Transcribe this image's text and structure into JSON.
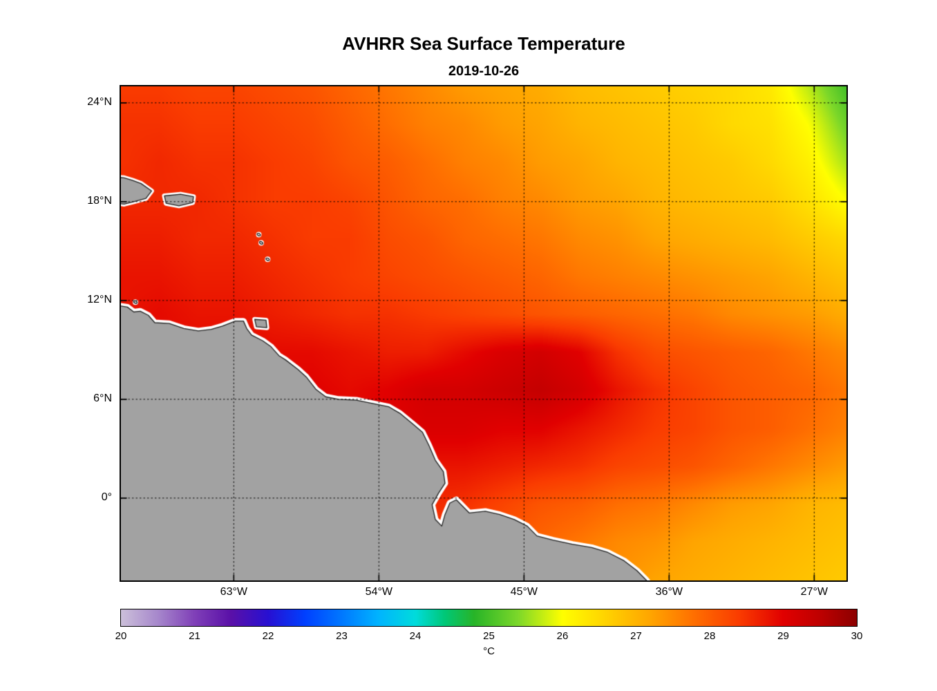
{
  "title": "AVHRR Sea Surface Temperature",
  "subtitle": "2019-10-26",
  "chart_data": {
    "type": "heatmap",
    "title": "AVHRR Sea Surface Temperature",
    "subtitle": "2019-10-26",
    "grid": "dotted",
    "units": "°C",
    "x_axis": {
      "range": [
        -70,
        -25
      ],
      "ticks": [
        {
          "value": -63,
          "label": "63°W"
        },
        {
          "value": -54,
          "label": "54°W"
        },
        {
          "value": -45,
          "label": "45°W"
        },
        {
          "value": -36,
          "label": "36°W"
        },
        {
          "value": -27,
          "label": "27°W"
        }
      ]
    },
    "y_axis": {
      "range": [
        -5,
        25
      ],
      "ticks": [
        {
          "value": 24,
          "label": "24°N"
        },
        {
          "value": 18,
          "label": "18°N"
        },
        {
          "value": 12,
          "label": "12°N"
        },
        {
          "value": 6,
          "label": "6°N"
        },
        {
          "value": 0,
          "label": "0°"
        }
      ]
    },
    "sst_grid": {
      "lon_start": -70,
      "lon_end": -25,
      "cols": 20,
      "lat_start": 25,
      "lat_end": -5,
      "rows": 14,
      "units": "°C",
      "values": [
        [
          28.4,
          28.4,
          28.3,
          28.3,
          28.2,
          28.1,
          27.9,
          27.7,
          27.5,
          27.3,
          27.2,
          27.1,
          26.9,
          26.8,
          26.7,
          26.6,
          26.5,
          26.3,
          25.7,
          25.0
        ],
        [
          28.5,
          28.5,
          28.4,
          28.4,
          28.3,
          28.2,
          28.0,
          27.8,
          27.6,
          27.5,
          27.3,
          27.2,
          27.0,
          26.9,
          26.8,
          26.7,
          26.5,
          26.4,
          26.0,
          25.3
        ],
        [
          28.5,
          28.6,
          28.5,
          28.5,
          28.4,
          28.3,
          28.1,
          28.0,
          27.8,
          27.6,
          27.5,
          27.3,
          27.2,
          27.0,
          26.9,
          26.8,
          26.7,
          26.5,
          26.2,
          25.6
        ],
        [
          28.6,
          28.6,
          28.6,
          28.5,
          28.4,
          28.4,
          28.3,
          28.1,
          27.9,
          27.8,
          27.6,
          27.5,
          27.3,
          27.2,
          27.0,
          26.9,
          26.8,
          26.7,
          26.4,
          26.0
        ],
        [
          28.7,
          28.7,
          28.6,
          28.6,
          28.5,
          28.4,
          28.4,
          28.2,
          28.1,
          27.9,
          27.8,
          27.7,
          27.5,
          27.4,
          27.2,
          27.1,
          27.0,
          26.9,
          26.7,
          26.5
        ],
        [
          28.8,
          28.8,
          28.7,
          28.7,
          28.6,
          28.5,
          28.4,
          28.3,
          28.2,
          28.1,
          28.0,
          27.9,
          27.7,
          27.6,
          27.5,
          27.4,
          27.3,
          27.2,
          27.0,
          26.8
        ],
        [
          28.8,
          28.9,
          28.8,
          28.8,
          28.7,
          28.6,
          28.5,
          28.5,
          28.4,
          28.3,
          28.2,
          28.1,
          28.0,
          27.9,
          27.8,
          27.7,
          27.5,
          27.4,
          27.3,
          27.1
        ],
        [
          28.9,
          28.9,
          28.9,
          29.0,
          28.9,
          28.9,
          28.8,
          28.7,
          28.7,
          28.9,
          29.1,
          29.2,
          29.0,
          28.5,
          28.2,
          28.1,
          28.0,
          27.9,
          27.7,
          27.5
        ],
        [
          28.9,
          29.0,
          29.0,
          29.0,
          29.0,
          29.0,
          28.9,
          29.0,
          29.2,
          29.2,
          29.3,
          29.4,
          29.2,
          28.8,
          28.5,
          28.3,
          28.1,
          28.0,
          27.9,
          27.7
        ],
        [
          29.0,
          29.0,
          29.0,
          29.0,
          29.0,
          29.0,
          29.0,
          29.0,
          29.1,
          29.1,
          29.0,
          29.0,
          28.8,
          28.6,
          28.4,
          28.3,
          28.1,
          28.0,
          27.8,
          27.6
        ],
        [
          29.0,
          29.0,
          29.0,
          29.0,
          29.0,
          29.0,
          28.9,
          28.9,
          28.8,
          28.8,
          28.7,
          28.6,
          28.5,
          28.3,
          28.2,
          28.1,
          27.9,
          27.7,
          27.5,
          27.3
        ],
        [
          29.0,
          29.0,
          29.0,
          29.0,
          29.0,
          28.9,
          28.9,
          28.8,
          28.6,
          28.5,
          28.3,
          28.1,
          28.0,
          27.8,
          27.7,
          27.5,
          27.3,
          27.2,
          27.0,
          26.9
        ],
        [
          29.0,
          29.0,
          29.0,
          29.0,
          29.0,
          28.9,
          28.8,
          28.7,
          28.5,
          28.3,
          28.1,
          27.9,
          27.7,
          27.5,
          27.4,
          27.2,
          27.1,
          27.0,
          26.9,
          26.8
        ],
        [
          29.0,
          29.0,
          29.0,
          29.0,
          28.9,
          28.9,
          28.8,
          28.6,
          28.4,
          28.2,
          28.0,
          27.8,
          27.6,
          27.4,
          27.2,
          27.1,
          27.0,
          26.9,
          26.8,
          26.7
        ]
      ]
    },
    "colormap": [
      {
        "t": 20.0,
        "c": "#CCC0DA"
      },
      {
        "t": 20.5,
        "c": "#A788CC"
      },
      {
        "t": 21.0,
        "c": "#8040B8"
      },
      {
        "t": 21.5,
        "c": "#5A10A8"
      },
      {
        "t": 22.0,
        "c": "#2810D2"
      },
      {
        "t": 22.5,
        "c": "#0040FF"
      },
      {
        "t": 23.0,
        "c": "#0078FF"
      },
      {
        "t": 23.5,
        "c": "#00B4FF"
      },
      {
        "t": 24.0,
        "c": "#00DCDC"
      },
      {
        "t": 24.4,
        "c": "#00C878"
      },
      {
        "t": 24.8,
        "c": "#28B428"
      },
      {
        "t": 25.4,
        "c": "#7DD82A"
      },
      {
        "t": 26.0,
        "c": "#FFFF00"
      },
      {
        "t": 26.6,
        "c": "#FFD200"
      },
      {
        "t": 27.2,
        "c": "#FFA500"
      },
      {
        "t": 27.8,
        "c": "#FF6E00"
      },
      {
        "t": 28.4,
        "c": "#FA3C00"
      },
      {
        "t": 29.0,
        "c": "#E10000"
      },
      {
        "t": 29.5,
        "c": "#BE0000"
      },
      {
        "t": 30.0,
        "c": "#8C0000"
      }
    ],
    "colorbar": {
      "min": 20,
      "max": 30,
      "ticks": [
        20,
        21,
        22,
        23,
        24,
        25,
        26,
        27,
        28,
        29,
        30
      ],
      "label": "°C"
    },
    "land": {
      "color": "#A2A2A2",
      "outline": "#1F1F1F",
      "halo": "#FFFFFF",
      "mainland": [
        [
          -70.6,
          11.75
        ],
        [
          -69.6,
          11.6
        ],
        [
          -69.2,
          11.3
        ],
        [
          -68.8,
          11.35
        ],
        [
          -68.3,
          11.1
        ],
        [
          -67.9,
          10.65
        ],
        [
          -67.0,
          10.6
        ],
        [
          -66.1,
          10.3
        ],
        [
          -65.2,
          10.15
        ],
        [
          -64.4,
          10.25
        ],
        [
          -63.7,
          10.45
        ],
        [
          -62.9,
          10.75
        ],
        [
          -62.4,
          10.75
        ],
        [
          -62.2,
          10.3
        ],
        [
          -61.9,
          9.9
        ],
        [
          -61.2,
          9.55
        ],
        [
          -60.7,
          9.2
        ],
        [
          -60.2,
          8.65
        ],
        [
          -59.8,
          8.4
        ],
        [
          -59.0,
          7.8
        ],
        [
          -58.5,
          7.35
        ],
        [
          -57.9,
          6.6
        ],
        [
          -57.3,
          6.15
        ],
        [
          -56.5,
          6.0
        ],
        [
          -55.4,
          5.95
        ],
        [
          -54.4,
          5.75
        ],
        [
          -53.4,
          5.55
        ],
        [
          -52.7,
          5.15
        ],
        [
          -51.9,
          4.5
        ],
        [
          -51.3,
          4.0
        ],
        [
          -50.9,
          3.2
        ],
        [
          -50.5,
          2.3
        ],
        [
          -50.0,
          1.6
        ],
        [
          -49.9,
          0.9
        ],
        [
          -50.3,
          0.3
        ],
        [
          -50.7,
          -0.4
        ],
        [
          -50.5,
          -1.3
        ],
        [
          -50.1,
          -1.7
        ],
        [
          -49.9,
          -1.0
        ],
        [
          -49.6,
          -0.3
        ],
        [
          -49.2,
          -0.1
        ],
        [
          -48.8,
          -0.5
        ],
        [
          -48.4,
          -0.9
        ],
        [
          -47.4,
          -0.8
        ],
        [
          -46.5,
          -1.0
        ],
        [
          -45.6,
          -1.3
        ],
        [
          -44.8,
          -1.7
        ],
        [
          -44.2,
          -2.3
        ],
        [
          -43.2,
          -2.55
        ],
        [
          -42.0,
          -2.8
        ],
        [
          -40.8,
          -3.0
        ],
        [
          -39.8,
          -3.3
        ],
        [
          -38.8,
          -3.8
        ],
        [
          -38.0,
          -4.4
        ],
        [
          -37.4,
          -5.0
        ],
        [
          -37.0,
          -5.6
        ],
        [
          -70.6,
          -5.6
        ]
      ],
      "islands": [
        [
          [
            -70.6,
            19.5
          ],
          [
            -69.8,
            19.45
          ],
          [
            -69.3,
            19.3
          ],
          [
            -68.75,
            19.1
          ],
          [
            -68.1,
            18.65
          ],
          [
            -68.45,
            18.2
          ],
          [
            -69.2,
            18.0
          ],
          [
            -69.8,
            17.85
          ],
          [
            -70.6,
            17.95
          ]
        ],
        [
          [
            -67.3,
            18.35
          ],
          [
            -66.3,
            18.45
          ],
          [
            -65.5,
            18.3
          ],
          [
            -65.55,
            17.95
          ],
          [
            -66.4,
            17.75
          ],
          [
            -67.2,
            17.9
          ]
        ],
        [
          [
            -61.7,
            10.85
          ],
          [
            -61.0,
            10.8
          ],
          [
            -60.95,
            10.35
          ],
          [
            -61.6,
            10.4
          ]
        ]
      ],
      "island_specks": [
        [
          -61.45,
          16.0
        ],
        [
          -61.3,
          15.5
        ],
        [
          -60.9,
          14.5
        ],
        [
          -69.1,
          11.9
        ]
      ]
    }
  }
}
